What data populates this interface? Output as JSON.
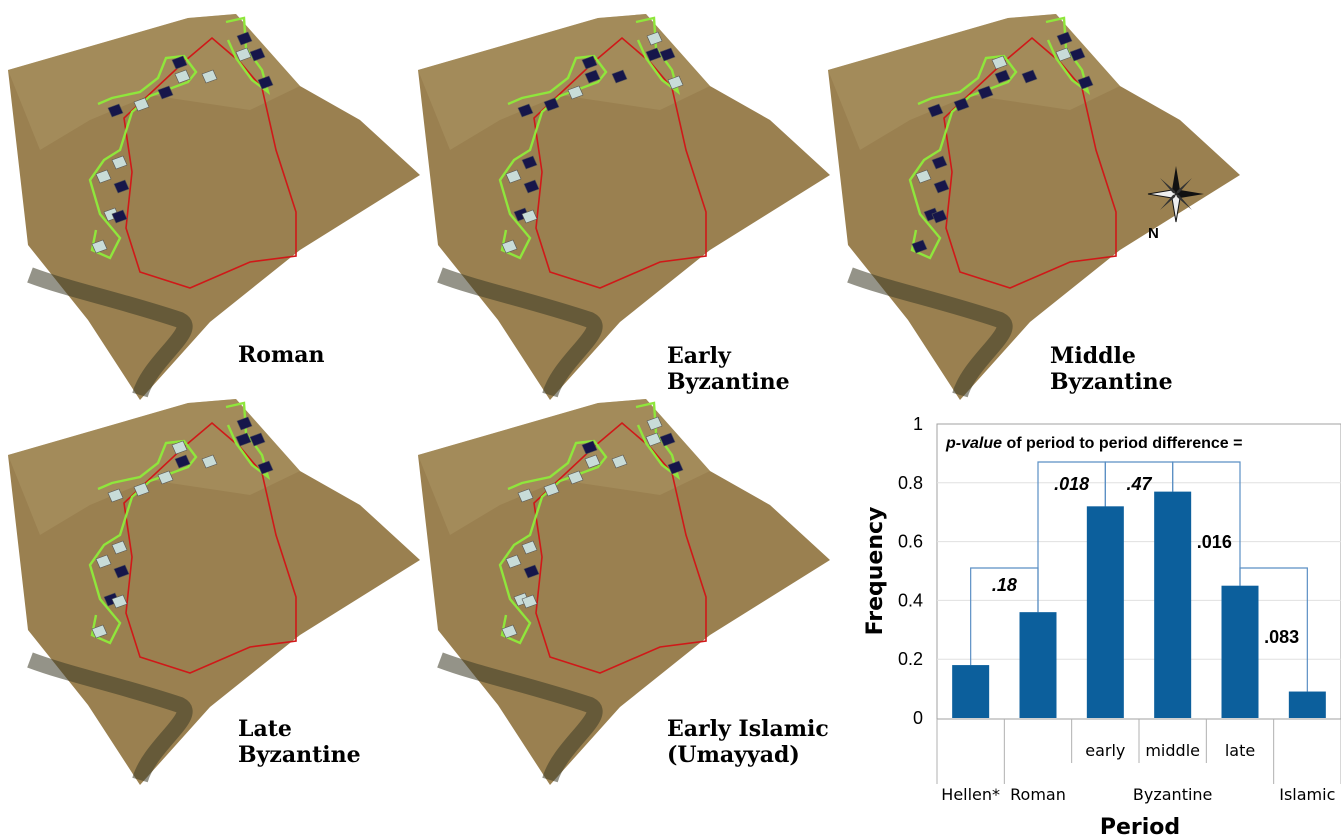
{
  "panels": [
    {
      "label_line1": "Roman",
      "label_line2": ""
    },
    {
      "label_line1": "Early",
      "label_line2": "Byzantine"
    },
    {
      "label_line1": "Middle",
      "label_line2": "Byzantine"
    },
    {
      "label_line1": "Late",
      "label_line2": "Byzantine"
    },
    {
      "label_line1": "Early Islamic",
      "label_line2": "(Umayyad)"
    }
  ],
  "compass": {
    "label": "N"
  },
  "colors": {
    "terrain": "#9a8050",
    "boundary": "#d01818",
    "trail": "#8fe63c",
    "plot_used": "#16164a",
    "plot_unused": "#c8dcd8",
    "bar": "#0c5f9c"
  },
  "chart_data": {
    "type": "bar",
    "title": "p-value of period to period difference =",
    "title_italic": "p-value",
    "title_rest": " of period to period difference =",
    "ylabel": "Frequency",
    "xlabel": "Period",
    "ylim": [
      0,
      1
    ],
    "yticks": [
      "0",
      "0.2",
      "0.4",
      "0.6",
      "0.8",
      "1"
    ],
    "categories": [
      "Hellen*",
      "Roman",
      "early",
      "middle",
      "late",
      "Islamic"
    ],
    "group_label": "Byzantine",
    "values": [
      0.18,
      0.36,
      0.72,
      0.77,
      0.45,
      0.09
    ],
    "pvalues": [
      {
        "between": [
          "Hellen*",
          "Roman"
        ],
        "label": ".18",
        "italic": true
      },
      {
        "between": [
          "Roman",
          "early"
        ],
        "label": ".018",
        "italic": true
      },
      {
        "between": [
          "early",
          "middle"
        ],
        "label": ".47",
        "italic": true
      },
      {
        "between": [
          "middle",
          "late"
        ],
        "label": ".016",
        "italic": false
      },
      {
        "between": [
          "late",
          "Islamic"
        ],
        "label": ".083",
        "italic": false
      }
    ]
  }
}
